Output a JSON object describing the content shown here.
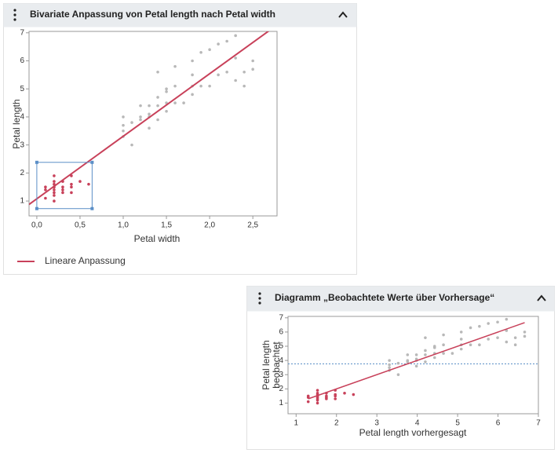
{
  "chart_data": [
    {
      "type": "scatter",
      "title": "Bivariate Anpassung von Petal length nach Petal width",
      "xlabel": "Petal width",
      "ylabel": "Petal length",
      "xlim": [
        -0.09,
        2.78
      ],
      "ylim": [
        0.47,
        7.05
      ],
      "xticks": [
        {
          "value": 0,
          "label": "0,0"
        },
        {
          "value": 0.5,
          "label": "0,5"
        },
        {
          "value": 1,
          "label": "1,0"
        },
        {
          "value": 1.5,
          "label": "1,5"
        },
        {
          "value": 2,
          "label": "2,0"
        },
        {
          "value": 2.5,
          "label": "2,5"
        }
      ],
      "yticks": [
        1,
        2,
        3,
        4,
        5,
        6,
        7
      ],
      "series": [
        {
          "color": "#c8415a",
          "x": [
            0.2,
            0.2,
            0.2,
            0.2,
            0.4,
            0.3,
            0.1,
            0.2,
            0.1,
            0.2,
            0.4,
            0.3,
            0.2,
            0.5,
            0.2,
            0.4,
            0.3,
            0.6,
            0.4,
            0.1,
            0.3,
            0.2
          ],
          "values": [
            1.4,
            1.3,
            1.5,
            1.7,
            1.5,
            1.4,
            1.5,
            1.6,
            1.1,
            1.2,
            1.3,
            1.7,
            1.0,
            1.7,
            1.9,
            1.9,
            1.3,
            1.6,
            1.6,
            1.4,
            1.5,
            1.5
          ]
        },
        {
          "color": "#b8b8b8",
          "x": [
            1.0,
            1.0,
            1.0,
            1.0,
            1.1,
            1.1,
            1.2,
            1.2,
            1.2,
            1.3,
            1.3,
            1.3,
            1.3,
            1.4,
            1.4,
            1.4,
            1.5,
            1.5,
            1.5,
            1.5,
            1.6,
            1.6,
            1.7,
            1.8,
            1.8,
            1.8,
            1.8,
            1.9,
            1.9,
            2.0,
            2.0,
            2.1,
            2.1,
            2.2,
            2.2,
            2.3,
            2.3,
            2.3,
            2.4,
            2.4,
            2.5,
            2.5,
            1.4,
            1.6
          ],
          "values": [
            3.5,
            3.3,
            4.0,
            3.7,
            3.0,
            3.8,
            4.0,
            4.4,
            3.9,
            4.0,
            4.4,
            4.1,
            3.6,
            4.7,
            4.4,
            3.9,
            4.5,
            4.9,
            4.2,
            5.0,
            4.5,
            5.1,
            4.5,
            4.8,
            5.1,
            5.5,
            6.0,
            5.1,
            6.3,
            5.1,
            6.4,
            5.5,
            6.6,
            5.6,
            6.7,
            5.3,
            6.1,
            6.9,
            5.1,
            5.6,
            5.7,
            6.0,
            5.6,
            5.8
          ]
        }
      ],
      "fit": {
        "intercept": 1.08,
        "slope": 2.23,
        "color": "#c8415a",
        "name": "Lineare Anpassung"
      },
      "selection": {
        "x": [
          0,
          0.64
        ],
        "y": [
          0.73,
          2.38
        ],
        "color": "#5b8fc7"
      }
    },
    {
      "type": "scatter",
      "title": "Diagramm „Beobachtete Werte über Vorhersage“",
      "xlabel": "Petal length vorhergesagt",
      "ylabel": [
        "Petal length",
        "beobachtet"
      ],
      "xlim": [
        0.8,
        7
      ],
      "ylim": [
        0.25,
        7.1
      ],
      "xticks": [
        1,
        2,
        3,
        4,
        5,
        6,
        7
      ],
      "yticks": [
        1,
        2,
        3,
        4,
        5,
        6,
        7
      ],
      "series": [
        {
          "color": "#c8415a",
          "x": [
            1.53,
            1.53,
            1.53,
            1.53,
            1.97,
            1.75,
            1.3,
            1.53,
            1.3,
            1.53,
            1.97,
            1.75,
            1.53,
            2.2,
            1.53,
            1.97,
            1.75,
            2.42,
            1.97,
            1.3,
            1.75,
            1.53
          ],
          "values": [
            1.4,
            1.3,
            1.5,
            1.7,
            1.5,
            1.4,
            1.5,
            1.6,
            1.1,
            1.2,
            1.3,
            1.7,
            1.0,
            1.7,
            1.9,
            1.9,
            1.3,
            1.6,
            1.6,
            1.4,
            1.5,
            1.5
          ]
        },
        {
          "color": "#b8b8b8",
          "x": [
            3.31,
            3.31,
            3.31,
            3.31,
            3.53,
            3.53,
            3.76,
            3.76,
            3.76,
            3.98,
            3.98,
            3.98,
            3.98,
            4.2,
            4.2,
            4.2,
            4.43,
            4.43,
            4.43,
            4.43,
            4.65,
            4.65,
            4.87,
            5.09,
            5.09,
            5.09,
            5.09,
            5.32,
            5.32,
            5.54,
            5.54,
            5.76,
            5.76,
            5.99,
            5.99,
            6.21,
            6.21,
            6.21,
            6.43,
            6.43,
            6.66,
            6.66,
            4.2,
            4.65
          ],
          "values": [
            3.5,
            3.3,
            4.0,
            3.7,
            3.0,
            3.8,
            4.0,
            4.4,
            3.9,
            4.0,
            4.4,
            4.1,
            3.6,
            4.7,
            4.4,
            3.9,
            4.5,
            4.9,
            4.2,
            5.0,
            4.5,
            5.1,
            4.5,
            4.8,
            5.1,
            5.5,
            6.0,
            5.1,
            6.3,
            5.1,
            6.4,
            5.5,
            6.6,
            5.6,
            6.7,
            5.3,
            6.1,
            6.9,
            5.1,
            5.6,
            5.7,
            6.0,
            5.6,
            5.8
          ]
        }
      ],
      "reference_line": {
        "x": [
          1.3,
          6.66
        ],
        "y": [
          1.3,
          6.66
        ],
        "color": "#c8415a"
      },
      "mean_line": {
        "value": 3.76,
        "color": "#5b8fc7"
      }
    }
  ]
}
